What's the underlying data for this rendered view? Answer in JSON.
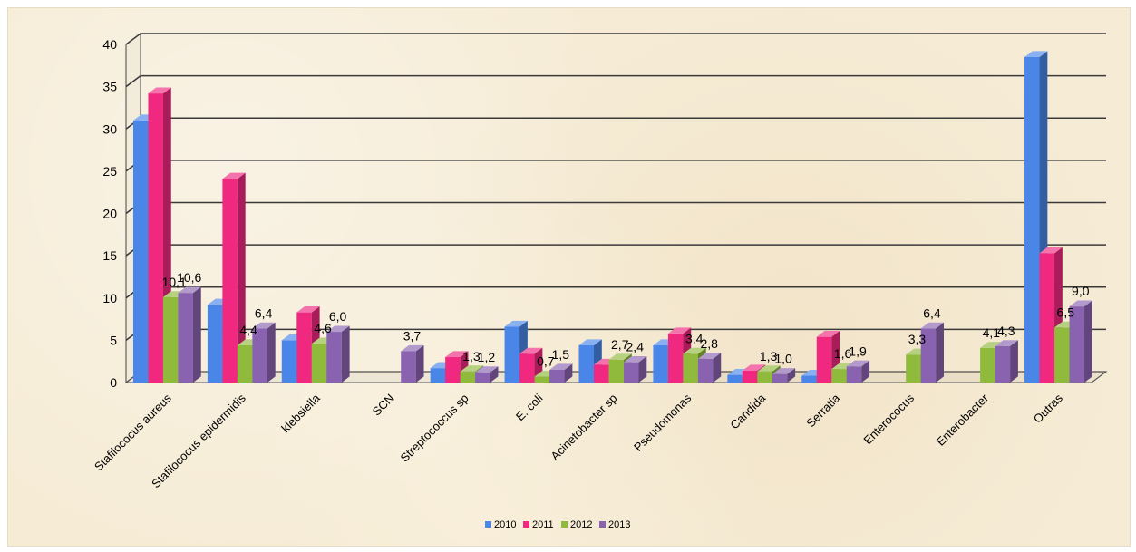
{
  "chart_data": {
    "type": "bar",
    "style": "3d-clustered-column",
    "categories": [
      "Stafilococus aureus",
      "Stafilococus epidermidis",
      "klebsiella",
      "SCN",
      "Streptococcus sp",
      "E. coli",
      "Acinetobacter sp",
      "Pseudomonas",
      "Candida",
      "Serratia",
      "Enterococus",
      "Enterobacter",
      "Outras"
    ],
    "series": [
      {
        "name": "2010",
        "color": "#4a86e8",
        "values": [
          31.0,
          9.2,
          5.0,
          null,
          1.7,
          6.6,
          4.4,
          4.4,
          0.9,
          0.8,
          null,
          null,
          38.5
        ]
      },
      {
        "name": "2011",
        "color": "#f0287f",
        "values": [
          34.2,
          24.1,
          8.3,
          null,
          3.0,
          3.4,
          2.1,
          5.8,
          1.4,
          5.4,
          null,
          null,
          15.3
        ]
      },
      {
        "name": "2012",
        "color": "#8fba3c",
        "values": [
          10.1,
          4.4,
          4.6,
          null,
          1.3,
          0.7,
          2.7,
          3.4,
          1.3,
          1.6,
          3.3,
          4.1,
          6.5
        ]
      },
      {
        "name": "2013",
        "color": "#8a63b0",
        "values": [
          10.6,
          6.4,
          6.0,
          3.7,
          1.2,
          1.5,
          2.4,
          2.8,
          1.0,
          1.9,
          6.4,
          4.3,
          9.0
        ]
      }
    ],
    "data_labels": [
      {
        "category": "Stafilococus aureus",
        "series": "2012",
        "text": "10,1"
      },
      {
        "category": "Stafilococus aureus",
        "series": "2013",
        "text": "10,6"
      },
      {
        "category": "Stafilococus epidermidis",
        "series": "2012",
        "text": "4,4"
      },
      {
        "category": "Stafilococus epidermidis",
        "series": "2013",
        "text": "6,4"
      },
      {
        "category": "klebsiella",
        "series": "2012",
        "text": "4,6"
      },
      {
        "category": "klebsiella",
        "series": "2013",
        "text": "6,0"
      },
      {
        "category": "SCN",
        "series": "2013",
        "text": "3,7"
      },
      {
        "category": "Streptococcus sp",
        "series": "2012",
        "text": "1,3"
      },
      {
        "category": "Streptococcus sp",
        "series": "2013",
        "text": "1,2"
      },
      {
        "category": "E. coli",
        "series": "2012",
        "text": "0,7"
      },
      {
        "category": "E. coli",
        "series": "2013",
        "text": "1,5"
      },
      {
        "category": "Acinetobacter sp",
        "series": "2012",
        "text": "2,7"
      },
      {
        "category": "Acinetobacter sp",
        "series": "2013",
        "text": "2,4"
      },
      {
        "category": "Pseudomonas",
        "series": "2012",
        "text": "3,4"
      },
      {
        "category": "Pseudomonas",
        "series": "2013",
        "text": "2,8"
      },
      {
        "category": "Candida",
        "series": "2012",
        "text": "1,3"
      },
      {
        "category": "Candida",
        "series": "2013",
        "text": "1,0"
      },
      {
        "category": "Serratia",
        "series": "2012",
        "text": "1,6"
      },
      {
        "category": "Serratia",
        "series": "2013",
        "text": "1,9"
      },
      {
        "category": "Enterococus",
        "series": "2012",
        "text": "3,3"
      },
      {
        "category": "Enterococus",
        "series": "2013",
        "text": "6,4"
      },
      {
        "category": "Enterobacter",
        "series": "2012",
        "text": "4,1"
      },
      {
        "category": "Enterobacter",
        "series": "2013",
        "text": "4,3"
      },
      {
        "category": "Outras",
        "series": "2012",
        "text": "6,5"
      },
      {
        "category": "Outras",
        "series": "2013",
        "text": "9,0"
      }
    ],
    "y_ticks": [
      "0",
      "5",
      "10",
      "15",
      "20",
      "25",
      "30",
      "35",
      "40"
    ],
    "ylim": [
      0,
      40
    ],
    "grid": true,
    "legend": "bottom",
    "background_color": "#f6ecd6",
    "title": "",
    "xlabel": "",
    "ylabel": ""
  }
}
